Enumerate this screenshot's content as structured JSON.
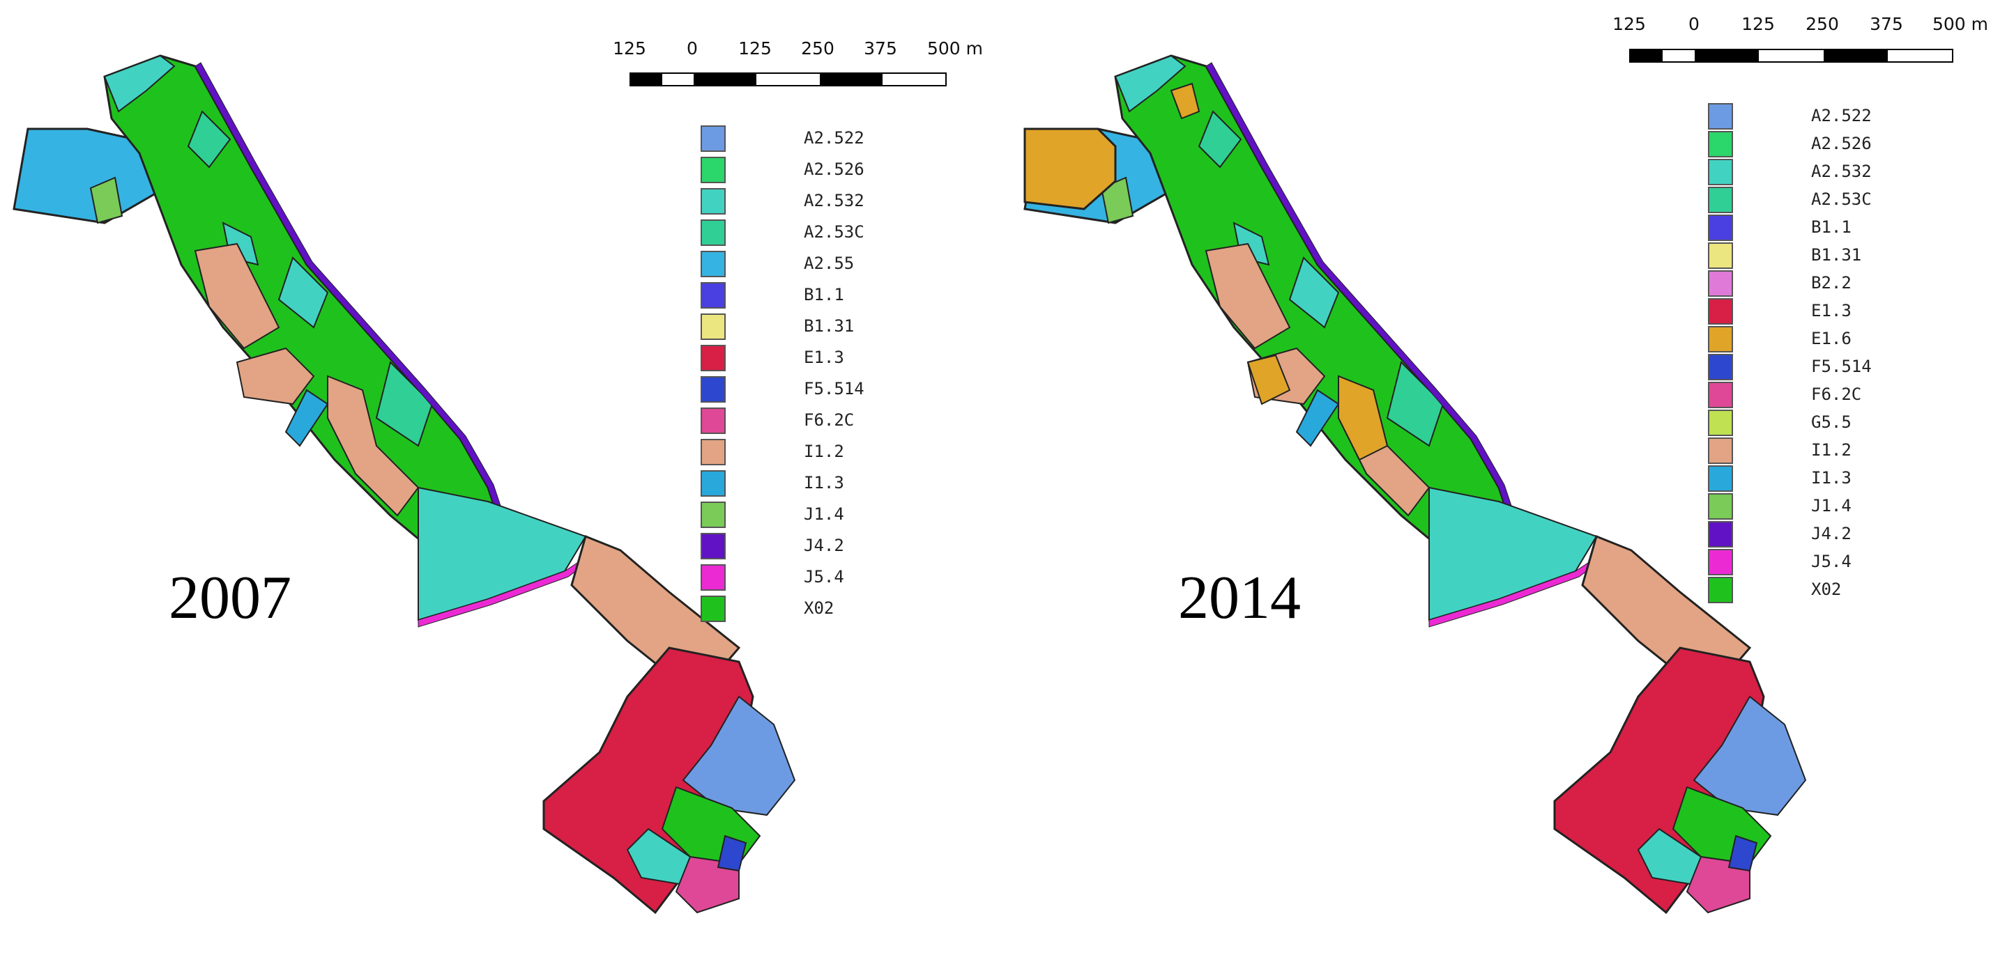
{
  "panels": [
    {
      "year": "2007",
      "scale": {
        "labels": [
          "125",
          "0",
          "125",
          "250",
          "375",
          "500 m"
        ]
      },
      "legend": [
        {
          "code": "A2.522",
          "color": "#6d9be3"
        },
        {
          "code": "A2.526",
          "color": "#2bd66a"
        },
        {
          "code": "A2.532",
          "color": "#42d2c2"
        },
        {
          "code": "A2.53C",
          "color": "#30cf96"
        },
        {
          "code": "A2.55",
          "color": "#35b3e2"
        },
        {
          "code": "B1.1",
          "color": "#4a3fe0"
        },
        {
          "code": "B1.31",
          "color": "#ece680"
        },
        {
          "code": "E1.3",
          "color": "#d81f45"
        },
        {
          "code": "F5.514",
          "color": "#2d47cf"
        },
        {
          "code": "F6.2C",
          "color": "#df4896"
        },
        {
          "code": "I1.2",
          "color": "#e2a484"
        },
        {
          "code": "I1.3",
          "color": "#29a8dc"
        },
        {
          "code": "J1.4",
          "color": "#7acb58"
        },
        {
          "code": "J4.2",
          "color": "#6012c4"
        },
        {
          "code": "J5.4",
          "color": "#ec2ad4"
        },
        {
          "code": "X02",
          "color": "#1fc21d"
        }
      ]
    },
    {
      "year": "2014",
      "scale": {
        "labels": [
          "125",
          "0",
          "125",
          "250",
          "375",
          "500 m"
        ]
      },
      "legend": [
        {
          "code": "A2.522",
          "color": "#6d9be3"
        },
        {
          "code": "A2.526",
          "color": "#2bd66a"
        },
        {
          "code": "A2.532",
          "color": "#42d2c2"
        },
        {
          "code": "A2.53C",
          "color": "#30cf96"
        },
        {
          "code": "B1.1",
          "color": "#4a3fe0"
        },
        {
          "code": "B1.31",
          "color": "#ece680"
        },
        {
          "code": "B2.2",
          "color": "#e07ad8"
        },
        {
          "code": "E1.3",
          "color": "#d81f45"
        },
        {
          "code": "E1.6",
          "color": "#dfa428"
        },
        {
          "code": "F5.514",
          "color": "#2d47cf"
        },
        {
          "code": "F6.2C",
          "color": "#df4896"
        },
        {
          "code": "G5.5",
          "color": "#bfe152"
        },
        {
          "code": "I1.2",
          "color": "#e2a484"
        },
        {
          "code": "I1.3",
          "color": "#29a8dc"
        },
        {
          "code": "J1.4",
          "color": "#7acb58"
        },
        {
          "code": "J4.2",
          "color": "#6012c4"
        },
        {
          "code": "J5.4",
          "color": "#ec2ad4"
        },
        {
          "code": "X02",
          "color": "#1fc21d"
        }
      ]
    }
  ]
}
